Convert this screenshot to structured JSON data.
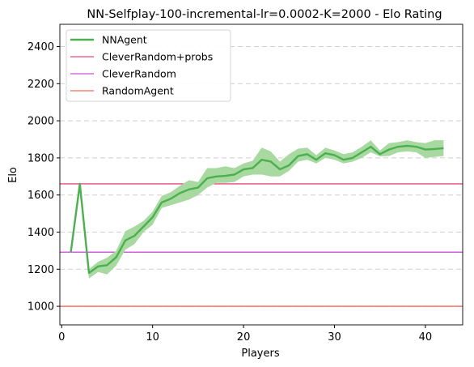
{
  "chart_data": {
    "type": "line",
    "title": "NN-Selfplay-100-incremental-lr=0.0002-K=2000 - Elo Rating",
    "xlabel": "Players",
    "ylabel": "Elo",
    "xlim": [
      -0.2,
      44.1
    ],
    "ylim": [
      900,
      2520
    ],
    "xticks": [
      0,
      10,
      20,
      30,
      40
    ],
    "yticks": [
      1000,
      1200,
      1400,
      1600,
      1800,
      2000,
      2200,
      2400
    ],
    "grid": "horizontal dashed",
    "legend_position": "top-left",
    "series": [
      {
        "name": "NNAgent",
        "kind": "line-with-band",
        "color": "#4caf50",
        "band_color": "#a8d9a0",
        "x": [
          1,
          2,
          3,
          4,
          5,
          6,
          7,
          8,
          9,
          10,
          11,
          12,
          13,
          14,
          15,
          16,
          17,
          18,
          19,
          20,
          21,
          22,
          23,
          24,
          25,
          26,
          27,
          28,
          29,
          30,
          31,
          32,
          33,
          34,
          35,
          36,
          37,
          38,
          39,
          40,
          41,
          42
        ],
        "values": [
          1290,
          1660,
          1180,
          1215,
          1222,
          1265,
          1355,
          1380,
          1430,
          1480,
          1560,
          1580,
          1610,
          1630,
          1640,
          1690,
          1700,
          1703,
          1710,
          1738,
          1745,
          1790,
          1780,
          1738,
          1760,
          1810,
          1820,
          1790,
          1825,
          1815,
          1790,
          1800,
          1830,
          1860,
          1820,
          1845,
          1860,
          1865,
          1860,
          1845,
          1848,
          1852
        ],
        "band_low": [
          1290,
          1660,
          1150,
          1185,
          1172,
          1220,
          1305,
          1335,
          1400,
          1440,
          1530,
          1545,
          1560,
          1575,
          1600,
          1640,
          1665,
          1665,
          1670,
          1700,
          1710,
          1710,
          1700,
          1700,
          1730,
          1780,
          1790,
          1770,
          1800,
          1790,
          1770,
          1780,
          1800,
          1830,
          1808,
          1810,
          1830,
          1835,
          1830,
          1800,
          1805,
          1810
        ],
        "band_high": [
          1290,
          1660,
          1200,
          1240,
          1262,
          1300,
          1405,
          1430,
          1460,
          1510,
          1595,
          1615,
          1650,
          1680,
          1670,
          1745,
          1745,
          1755,
          1745,
          1770,
          1785,
          1855,
          1835,
          1780,
          1820,
          1850,
          1855,
          1815,
          1855,
          1840,
          1820,
          1830,
          1860,
          1895,
          1840,
          1880,
          1885,
          1895,
          1885,
          1880,
          1895,
          1895
        ]
      },
      {
        "name": "CleverRandom+probs",
        "kind": "hline",
        "y": 1660,
        "color": "#e91e63"
      },
      {
        "name": "CleverRandom",
        "kind": "hline",
        "y": 1292,
        "color": "#c026d3"
      },
      {
        "name": "RandomAgent",
        "kind": "hline",
        "y": 1000,
        "color": "#f44336"
      }
    ]
  }
}
